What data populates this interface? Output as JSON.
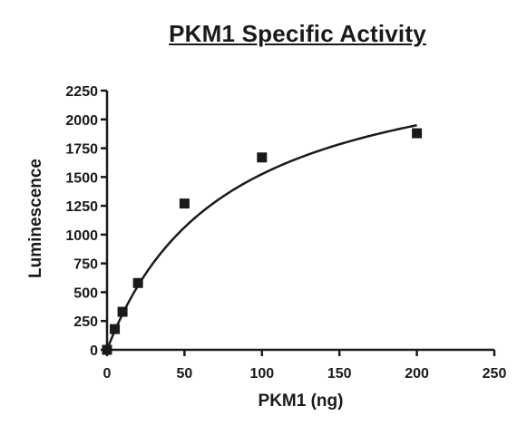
{
  "chart_data": {
    "type": "scatter",
    "title": "PKM1 Specific Activity",
    "xlabel": "PKM1 (ng)",
    "ylabel": "Luminescence",
    "xlim": [
      0,
      250
    ],
    "ylim": [
      0,
      2250
    ],
    "x_ticks": [
      0,
      50,
      100,
      150,
      200,
      250
    ],
    "y_ticks": [
      0,
      250,
      500,
      750,
      1000,
      1250,
      1500,
      1750,
      2000,
      2250
    ],
    "grid": false,
    "legend": "none",
    "series": [
      {
        "points": [
          {
            "x": 0,
            "y": 0
          },
          {
            "x": 5,
            "y": 180
          },
          {
            "x": 10,
            "y": 330
          },
          {
            "x": 20,
            "y": 580
          },
          {
            "x": 50,
            "y": 1270
          },
          {
            "x": 100,
            "y": 1670
          },
          {
            "x": 200,
            "y": 1880
          }
        ]
      }
    ],
    "fit": {
      "model": "hyperbolic",
      "vmax": 2700,
      "k": 77,
      "x_range": [
        0,
        200
      ]
    },
    "colors": {
      "marker": "#1a1a1a",
      "line": "#1a1a1a",
      "axis": "#1a1a1a"
    }
  }
}
